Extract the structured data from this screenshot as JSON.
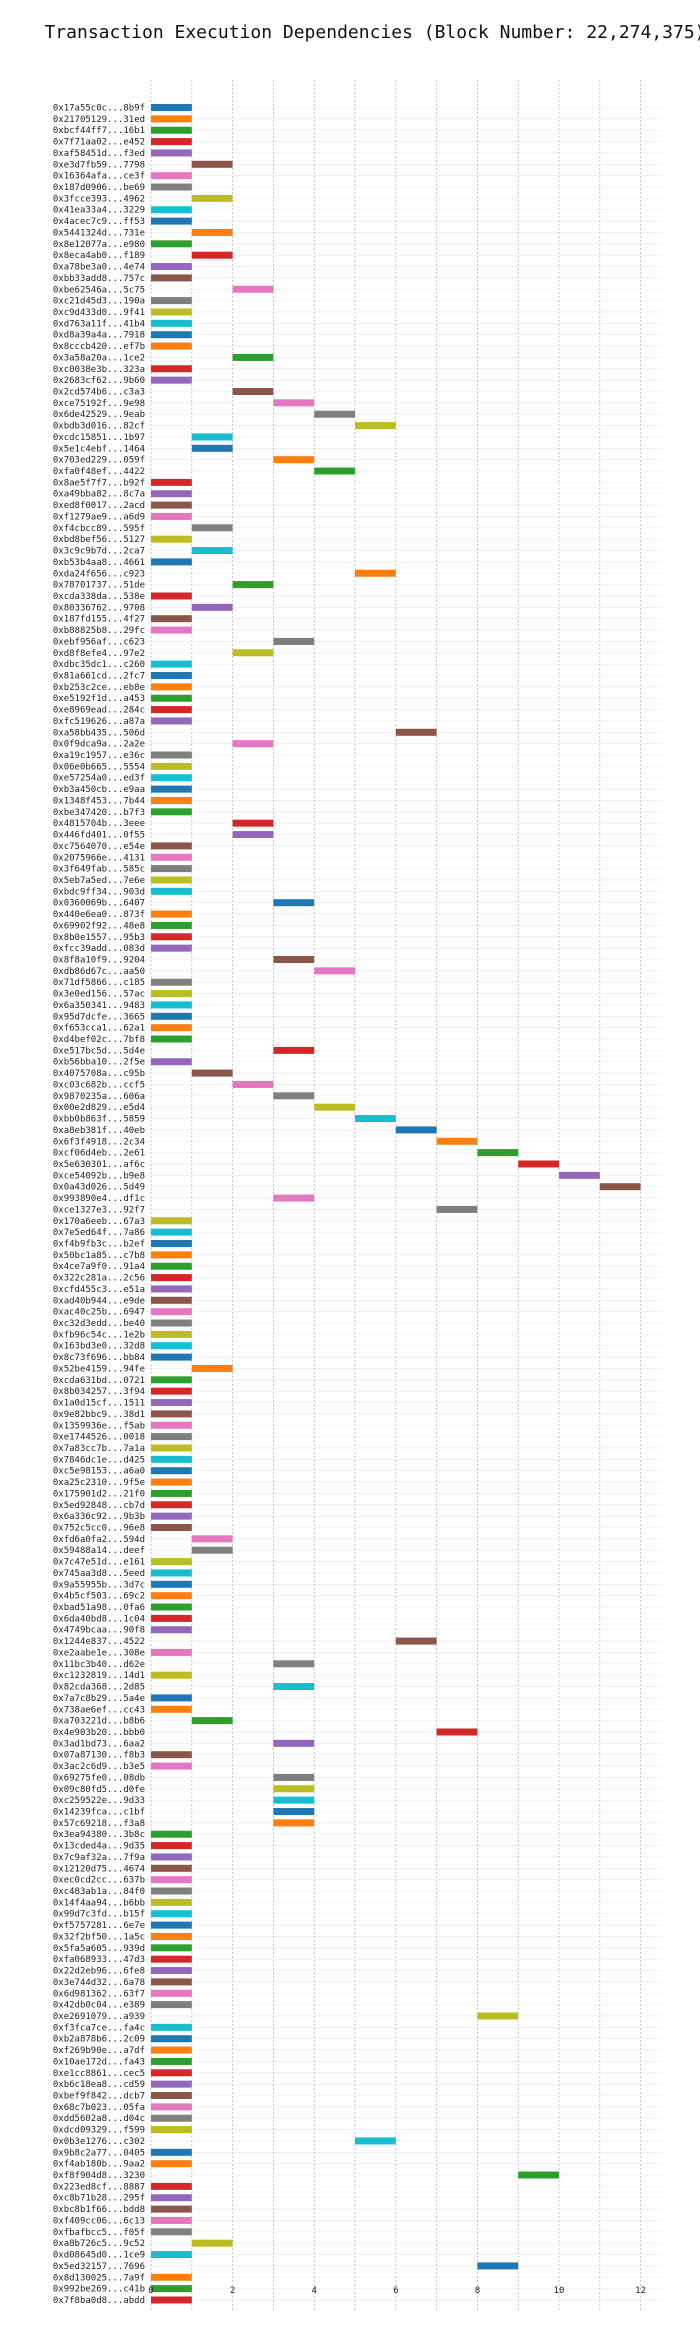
{
  "chart_data": {
    "type": "gantt",
    "title": "Transaction Execution Dependencies (Block Number: 22,274,375)",
    "xlabel": "",
    "ylabel": "",
    "xlim": [
      -0.5,
      12.5
    ],
    "xticks": [
      0,
      2,
      4,
      6,
      8,
      10,
      12
    ],
    "grid": true,
    "legend": "none",
    "colors": {
      "blue": "#1f77b4",
      "orange": "#ff7f0e",
      "green": "#2ca02c",
      "red": "#d62728",
      "purple": "#9467bd",
      "brown": "#8c564b",
      "pink": "#e377c2",
      "gray": "#7f7f7f",
      "olive": "#bcbd22",
      "cyan": "#17becf"
    },
    "palette": [
      "#1f77b4",
      "#ff7f0e",
      "#2ca02c",
      "#d62728",
      "#9467bd",
      "#8c564b",
      "#e377c2",
      "#7f7f7f",
      "#bcbd22",
      "#17becf"
    ],
    "transactions": [
      "0x17a55c0c...8b9f",
      "0x21705129...31ed",
      "0xbcf44ff7...16b1",
      "0x7f71aa02...e452",
      "0xaf58451d...f3ed",
      "0xe3d7fb59...7798",
      "0x16364afa...ce3f",
      "0x187d0906...be69",
      "0x3fcce393...4962",
      "0x41ea33a4...3229",
      "0x4acec7c9...ff53",
      "0x5441324d...731e",
      "0x8e12077a...e980",
      "0x8eca4ab0...f189",
      "0xa78be3a0...4e74",
      "0xbb33add8...757c",
      "0xbe62546a...5c75",
      "0xc21d45d3...190a",
      "0xc9d433d0...9f41",
      "0xd763a11f...41b4",
      "0xd8a39a4a...7918",
      "0x8cccb420...ef7b",
      "0x3a58a20a...1ce2",
      "0xc0038e3b...323a",
      "0x2683cf62...9b60",
      "0x2cd574b6...c3a3",
      "0xce75192f...9e98",
      "0x6de42529...9eab",
      "0xbdb3d016...82cf",
      "0xcdc15851...1b97",
      "0x5e1c4ebf...1464",
      "0x703ed229...059f",
      "0xfa0f48ef...4422",
      "0x8ae5f7f7...b92f",
      "0xa49bba82...8c7a",
      "0xed8f0017...2acd",
      "0xf1279ae9...a6d9",
      "0xf4cbcc89...595f",
      "0xbd8bef56...5127",
      "0x3c9c9b7d...2ca7",
      "0xb53b4aa8...4661",
      "0xda24f656...c923",
      "0x78701737...51de",
      "0xcda338da...538e",
      "0x80336762...9708",
      "0x187fd155...4f27",
      "0xb88825b8...29fc",
      "0xebf956af...c623",
      "0xd8f8efe4...97e2",
      "0xdbc35dc1...c260",
      "0x81a661cd...2fc7",
      "0xb253c2ce...eb8e",
      "0xe5192f1d...a453",
      "0xe8969ead...284c",
      "0xfc519626...a87a",
      "0xa58bb435...506d",
      "0x0f9dca9a...2a2e",
      "0xa19c1957...e36c",
      "0x06e0b665...5554",
      "0xe57254a0...ed3f",
      "0xb3a450cb...e9aa",
      "0x1348f453...7b44",
      "0xbe347420...b7f3",
      "0x4815704b...3eee",
      "0x446fd401...0f55",
      "0xc7564070...e54e",
      "0x2075966e...4131",
      "0x3f649fab...585c",
      "0x5eb7a5ed...7e6e",
      "0xbdc9ff34...903d",
      "0x0360069b...6407",
      "0x440e6ea0...873f",
      "0x69902f92...48e8",
      "0x8b0e1557...95b3",
      "0xfcc39add...083d",
      "0x8f8a10f9...9204",
      "0xdb86d67c...aa50",
      "0x71df5866...c185",
      "0x3e0ed156...57ac",
      "0x6a350341...9483",
      "0x95d7dcfe...3665",
      "0xf653cca1...62a1",
      "0xd4bef02c...7bf8",
      "0xe517bc5d...5d4e",
      "0xb56bba10...2f5e",
      "0x4075708a...c95b",
      "0xc03c682b...ccf5",
      "0x9870235a...606a",
      "0x00e2d829...e5d4",
      "0xbb0b863f...5859",
      "0xa8eb381f...40eb",
      "0x6f3f4918...2c34",
      "0xcf06d4eb...2e61",
      "0x5e630301...af6c",
      "0xce54092b...b9e8",
      "0x0a43d026...5d49",
      "0x993890e4...df1c",
      "0xce1327e3...92f7",
      "0x170a6eeb...67a3",
      "0x7e5ed64f...7a86",
      "0xf4b9fb3c...b2ef",
      "0x50bc1a85...c7b8",
      "0x4ce7a9f0...91a4",
      "0x322c281a...2c56",
      "0xcfd455c3...e51a",
      "0xad40b944...e9de",
      "0xac40c25b...6947",
      "0xc32d3edd...be40",
      "0xfb96c54c...1e2b",
      "0x163bd3e0...32d8",
      "0x8c73f696...bb84",
      "0x52be4159...94fe",
      "0xcda631bd...0721",
      "0x8b034257...3f94",
      "0x1a0d15cf...1511",
      "0x9e82bbc9...38d1",
      "0x1359936e...f5ab",
      "0xe1744526...0018",
      "0x7a83cc7b...7a1a",
      "0x7846dc1e...d425",
      "0xc5e98153...a6a0",
      "0xa25c2310...9f5e",
      "0x175901d2...21f0",
      "0x5ed92848...cb7d",
      "0x6a336c92...9b3b",
      "0x752c5cc0...96e8",
      "0xfd6a0fa2...594d",
      "0x59488a14...deef",
      "0x7c47e51d...e161",
      "0x745aa3d8...5eed",
      "0x9a55955b...3d7c",
      "0x4b5cf503...69c2",
      "0xbad51a98...0fa6",
      "0x6da40bd8...1c04",
      "0x4749bcaa...90f8",
      "0x1244e837...4522",
      "0xe2aabe1e...308e",
      "0x11bc3b40...d62e",
      "0xc1232819...14d1",
      "0x82cda368...2d85",
      "0x7a7c8b29...5a4e",
      "0x738ae6ef...cc43",
      "0xa703221d...b8b6",
      "0x4e903b20...bbb0",
      "0x3ad1bd73...6aa2",
      "0x07a87130...f8b3",
      "0x3ac2c6d9...b3e5",
      "0x69275fe0...08db",
      "0x09c80fd5...d0fe",
      "0xc259522e...9d33",
      "0x14239fca...c1bf",
      "0x57c69218...f3a8",
      "0x3ea94380...3b8c",
      "0x13cded4a...9d35",
      "0x7c9af32a...7f9a",
      "0x12120d75...4674",
      "0xec0cd2cc...637b",
      "0xc483ab1a...84f0",
      "0x14f4aa94...b6bb",
      "0x99d7c3fd...b15f",
      "0xf5757281...6e7e",
      "0x32f2bf50...1a5c",
      "0x5fa5a605...939d",
      "0xfa068933...47d3",
      "0x22d2eb96...6fe8",
      "0x3e744d32...6a78",
      "0x6d981362...63f7",
      "0x42db0c04...e389",
      "0xe2691079...a939",
      "0xf3fca7ce...fa4c",
      "0xb2a878b6...2c09",
      "0xf269b90e...a7df",
      "0x10ae172d...fa43",
      "0xe1cc8861...cec5",
      "0xb6c18ea8...cd59",
      "0xbef9f842...dcb7",
      "0x68c7b023...05fa",
      "0xdd5602a8...d04c",
      "0xdcd09329...f599",
      "0x0b3e1276...c302",
      "0x9b8c2a77...0405",
      "0xf4ab180b...9aa2",
      "0xf8f904d8...3230",
      "0x223ed8cf...8887",
      "0xc8b71b28...295f",
      "0xbc8b1f66...bdd8",
      "0xf409cc06...6c13",
      "0xfbafbcc5...f05f",
      "0xa8b726c5...9c52",
      "0xd08645d0...1ce9",
      "0x5ed32157...7696",
      "0x8d130025...7a9f",
      "0x992be269...c41b",
      "0x7f8ba0d8...abdd"
    ],
    "start": [
      0,
      0,
      0,
      0,
      0,
      1,
      0,
      0,
      1,
      0,
      0,
      1,
      0,
      1,
      0,
      0,
      2,
      0,
      0,
      0,
      0,
      0,
      2,
      0,
      0,
      2,
      3,
      4,
      5,
      1,
      1,
      3,
      4,
      0,
      0,
      0,
      0,
      1,
      0,
      1,
      0,
      5,
      2,
      0,
      1,
      0,
      0,
      3,
      2,
      0,
      0,
      0,
      0,
      0,
      0,
      6,
      2,
      0,
      0,
      0,
      0,
      0,
      0,
      2,
      2,
      0,
      0,
      0,
      0,
      0,
      3,
      0,
      0,
      0,
      0,
      3,
      4,
      0,
      0,
      0,
      0,
      0,
      0,
      3,
      0,
      1,
      2,
      3,
      4,
      5,
      6,
      7,
      8,
      9,
      10,
      11,
      3,
      7,
      0,
      0,
      0,
      0,
      0,
      0,
      0,
      0,
      0,
      0,
      0,
      0,
      0,
      1,
      0,
      0,
      0,
      0,
      0,
      0,
      0,
      0,
      0,
      0,
      0,
      0,
      0,
      0,
      1,
      1,
      0,
      0,
      0,
      0,
      0,
      0,
      0,
      6,
      0,
      3,
      0,
      3,
      0,
      0,
      1,
      7,
      3,
      0,
      0,
      3,
      3,
      3,
      3,
      3,
      0,
      0,
      0,
      0,
      0,
      0,
      0,
      0,
      0,
      0,
      0,
      0,
      0,
      0,
      0,
      0,
      8,
      0,
      0,
      0,
      0,
      0,
      0,
      0,
      0,
      0,
      0,
      5,
      0,
      0,
      9,
      0,
      0,
      0,
      0,
      0,
      1,
      0,
      8,
      0,
      0,
      0
    ],
    "color": [
      "blue",
      "orange",
      "green",
      "red",
      "purple",
      "brown",
      "pink",
      "gray",
      "olive",
      "cyan",
      "blue",
      "orange",
      "green",
      "red",
      "purple",
      "brown",
      "pink",
      "gray",
      "olive",
      "cyan",
      "blue",
      "orange",
      "green",
      "red",
      "purple",
      "brown",
      "pink",
      "gray",
      "olive",
      "cyan",
      "blue",
      "orange",
      "green",
      "red",
      "purple",
      "brown",
      "pink",
      "gray",
      "olive",
      "cyan",
      "blue",
      "orange",
      "green",
      "red",
      "purple",
      "brown",
      "pink",
      "gray",
      "olive",
      "cyan",
      "blue",
      "orange",
      "green",
      "red",
      "purple",
      "brown",
      "pink",
      "gray",
      "olive",
      "cyan",
      "blue",
      "orange",
      "green",
      "red",
      "purple",
      "brown",
      "pink",
      "gray",
      "olive",
      "cyan",
      "blue",
      "orange",
      "green",
      "red",
      "purple",
      "brown",
      "pink",
      "gray",
      "olive",
      "cyan",
      "blue",
      "orange",
      "green",
      "red",
      "purple",
      "brown",
      "pink",
      "gray",
      "olive",
      "cyan",
      "blue",
      "orange",
      "green",
      "red",
      "purple",
      "brown",
      "pink",
      "gray",
      "olive",
      "cyan",
      "blue",
      "orange",
      "green",
      "red",
      "purple",
      "brown",
      "pink",
      "gray",
      "olive",
      "cyan",
      "blue",
      "orange",
      "green",
      "red",
      "purple",
      "brown",
      "pink",
      "gray",
      "olive",
      "cyan",
      "blue",
      "orange",
      "green",
      "red",
      "purple",
      "brown",
      "pink",
      "gray",
      "olive",
      "cyan",
      "blue",
      "orange",
      "green",
      "red",
      "purple",
      "brown",
      "pink",
      "gray",
      "olive",
      "cyan",
      "blue",
      "orange",
      "green",
      "red",
      "purple",
      "brown",
      "pink",
      "gray",
      "olive",
      "cyan",
      "blue",
      "orange",
      "green",
      "red",
      "purple",
      "brown",
      "pink",
      "gray",
      "olive",
      "cyan",
      "blue",
      "orange",
      "green",
      "red",
      "purple",
      "brown",
      "pink",
      "gray",
      "olive",
      "cyan",
      "blue",
      "orange",
      "green",
      "red",
      "purple",
      "brown",
      "pink",
      "gray",
      "olive",
      "cyan",
      "blue",
      "orange",
      "green",
      "red",
      "purple",
      "brown",
      "pink",
      "gray",
      "olive",
      "cyan",
      "blue",
      "orange",
      "green",
      "red"
    ]
  }
}
